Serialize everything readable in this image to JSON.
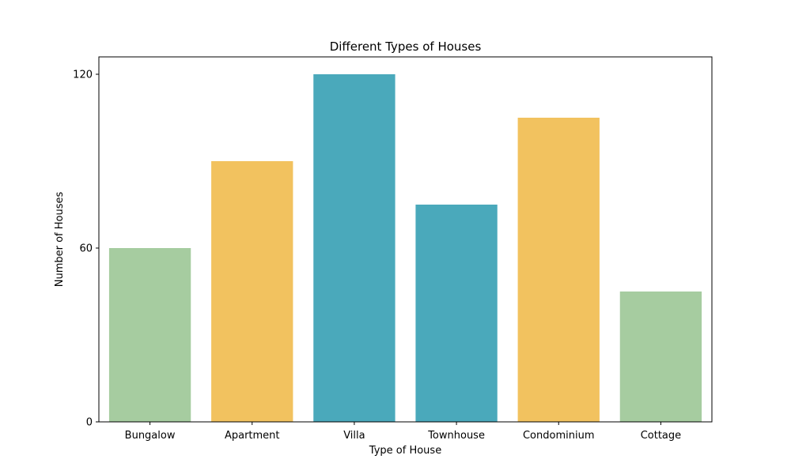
{
  "chart_data": {
    "type": "bar",
    "title": "Different Types of Houses",
    "xlabel": "Type of House",
    "ylabel": "Number of Houses",
    "categories": [
      "Bungalow",
      "Apartment",
      "Villa",
      "Townhouse",
      "Condominium",
      "Cottage"
    ],
    "values": [
      60,
      90,
      120,
      75,
      105,
      45
    ],
    "colors": [
      "#a6cca0",
      "#f2c25f",
      "#4aa9bb",
      "#4aa9bb",
      "#f2c25f",
      "#a6cca0"
    ],
    "ylim": [
      0,
      126
    ],
    "yticks": [
      0,
      60,
      120
    ],
    "grid": false,
    "legend": "none"
  }
}
